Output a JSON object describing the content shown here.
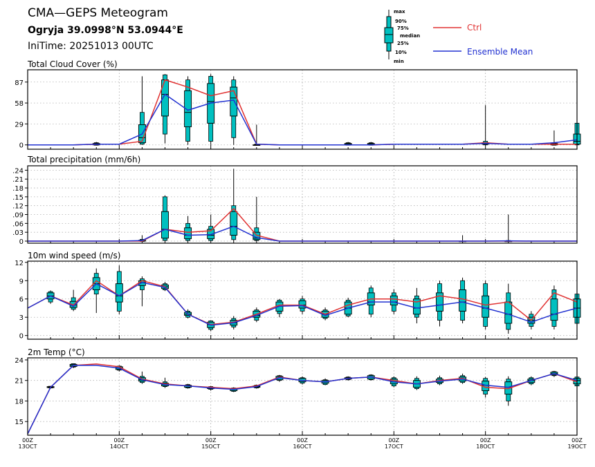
{
  "header": {
    "title": "CMA—GEPS Meteogram",
    "location": "Ogryja 39.0998°N 53.0944°E",
    "init_time": "IniTime: 20251013 00UTC"
  },
  "legend": {
    "box_labels": [
      "max",
      "90%",
      "75%",
      "median",
      "25%",
      "10%",
      "min"
    ],
    "ctrl_label": "Ctrl",
    "mean_label": "Ensemble Mean",
    "ctrl_color": "#e03030",
    "mean_color": "#2030d0",
    "box_color": "#00c0c0"
  },
  "chart_data": [
    {
      "type": "box",
      "title": "Total Cloud Cover (%)",
      "ylim": [
        -6,
        104
      ],
      "yticks": [
        0,
        29,
        58,
        87
      ],
      "x": [
        0,
        1,
        2,
        3,
        4,
        5,
        6,
        7,
        8,
        9,
        10,
        11,
        12,
        13,
        14,
        15,
        16,
        17,
        18,
        19,
        20,
        21,
        22,
        23,
        24
      ],
      "ctrl": [
        0,
        0,
        0,
        1,
        1,
        5,
        90,
        80,
        68,
        75,
        1,
        0,
        0,
        0,
        0,
        0,
        1,
        1,
        1,
        1,
        3,
        1,
        1,
        1,
        1
      ],
      "mean": [
        0,
        0,
        0,
        1,
        1,
        15,
        70,
        48,
        58,
        62,
        1,
        0,
        0,
        0,
        0,
        0,
        1,
        1,
        1,
        1,
        2,
        1,
        1,
        3,
        7
      ],
      "boxes": [
        null,
        null,
        null,
        {
          "min": 0,
          "p10": 0,
          "p25": 0,
          "med": 1,
          "p75": 2,
          "p90": 3,
          "max": 4
        },
        null,
        {
          "min": 0,
          "p10": 1,
          "p25": 3,
          "med": 10,
          "p75": 28,
          "p90": 45,
          "max": 95
        },
        {
          "min": 2,
          "p10": 15,
          "p25": 40,
          "med": 70,
          "p75": 90,
          "p90": 97,
          "max": 98
        },
        {
          "min": 0,
          "p10": 5,
          "p25": 25,
          "med": 45,
          "p75": 75,
          "p90": 90,
          "max": 95
        },
        {
          "min": 0,
          "p10": 5,
          "p25": 30,
          "med": 60,
          "p75": 85,
          "p90": 95,
          "max": 98
        },
        {
          "min": 0,
          "p10": 10,
          "p25": 40,
          "med": 65,
          "p75": 80,
          "p90": 90,
          "max": 95
        },
        {
          "min": 0,
          "p10": 0,
          "p25": 0,
          "med": 0,
          "p75": 0,
          "p90": 1,
          "max": 28
        },
        null,
        null,
        null,
        {
          "min": 0,
          "p10": 0,
          "p25": 0,
          "med": 1,
          "p75": 2,
          "p90": 3,
          "max": 4
        },
        {
          "min": 0,
          "p10": 0,
          "p25": 0,
          "med": 1,
          "p75": 2,
          "p90": 3,
          "max": 4
        },
        null,
        null,
        null,
        null,
        {
          "min": 0,
          "p10": 0,
          "p25": 1,
          "med": 2,
          "p75": 3,
          "p90": 5,
          "max": 55
        },
        null,
        null,
        {
          "min": 0,
          "p10": 0,
          "p25": 0,
          "med": 1,
          "p75": 2,
          "p90": 3,
          "max": 20
        },
        {
          "min": 0,
          "p10": 0,
          "p25": 1,
          "med": 5,
          "p75": 15,
          "p90": 30,
          "max": 35
        }
      ]
    },
    {
      "type": "box",
      "title": "Total precipitation (mm/6h)",
      "ylim": [
        -0.007,
        0.255
      ],
      "yticks": [
        0,
        0.03,
        0.06,
        0.09,
        0.12,
        0.15,
        0.18,
        0.21,
        0.24
      ],
      "x": [
        0,
        1,
        2,
        3,
        4,
        5,
        6,
        7,
        8,
        9,
        10,
        11,
        12,
        13,
        14,
        15,
        16,
        17,
        18,
        19,
        20,
        21,
        22,
        23,
        24
      ],
      "ctrl": [
        0,
        0,
        0,
        0,
        0,
        0,
        0.04,
        0.03,
        0.035,
        0.11,
        0.02,
        0,
        0,
        0,
        0,
        0,
        0,
        0,
        0,
        0,
        0,
        0,
        0,
        0,
        0
      ],
      "mean": [
        0,
        0,
        0,
        0,
        0,
        0.002,
        0.04,
        0.02,
        0.022,
        0.05,
        0.012,
        0,
        0,
        0,
        0,
        0,
        0,
        0,
        0,
        0,
        0,
        0.001,
        0,
        0,
        0
      ],
      "boxes": [
        null,
        null,
        null,
        null,
        null,
        {
          "min": 0,
          "p10": 0,
          "p25": 0,
          "med": 0,
          "p75": 0.003,
          "p90": 0.006,
          "max": 0.02
        },
        {
          "min": 0,
          "p10": 0.002,
          "p25": 0.01,
          "med": 0.04,
          "p75": 0.1,
          "p90": 0.15,
          "max": 0.155
        },
        {
          "min": 0,
          "p10": 0.002,
          "p25": 0.008,
          "med": 0.02,
          "p75": 0.045,
          "p90": 0.06,
          "max": 0.085
        },
        {
          "min": 0,
          "p10": 0.002,
          "p25": 0.008,
          "med": 0.02,
          "p75": 0.04,
          "p90": 0.05,
          "max": 0.09
        },
        {
          "min": 0,
          "p10": 0.005,
          "p25": 0.02,
          "med": 0.05,
          "p75": 0.1,
          "p90": 0.12,
          "max": 0.245
        },
        {
          "min": 0,
          "p10": 0.002,
          "p25": 0.005,
          "med": 0.01,
          "p75": 0.03,
          "p90": 0.045,
          "max": 0.15
        },
        null,
        null,
        null,
        null,
        null,
        null,
        null,
        null,
        {
          "min": 0,
          "p10": 0,
          "p25": 0,
          "med": 0,
          "p75": 0,
          "p90": 0,
          "max": 0.02
        },
        null,
        {
          "min": 0,
          "p10": 0,
          "p25": 0,
          "med": 0,
          "p75": 0,
          "p90": 0.002,
          "max": 0.09
        },
        null,
        null,
        null
      ]
    },
    {
      "type": "box",
      "title": "10m wind speed (m/s)",
      "ylim": [
        -0.6,
        12.2
      ],
      "yticks": [
        0,
        3,
        6,
        9,
        12
      ],
      "x": [
        0,
        1,
        2,
        3,
        4,
        5,
        6,
        7,
        8,
        9,
        10,
        11,
        12,
        13,
        14,
        15,
        16,
        17,
        18,
        19,
        20,
        21,
        22,
        23,
        24
      ],
      "ctrl": [
        4.5,
        6.5,
        5.0,
        9.0,
        6.5,
        9.0,
        8.0,
        3.5,
        1.8,
        2.2,
        3.5,
        5.0,
        5.0,
        3.5,
        5.0,
        6.0,
        6.0,
        5.5,
        6.5,
        6.0,
        5.0,
        5.5,
        2.5,
        7.0,
        5.5
      ],
      "mean": [
        4.5,
        6.5,
        4.8,
        8.5,
        6.5,
        8.7,
        7.9,
        3.5,
        1.7,
        2.1,
        3.3,
        4.8,
        4.9,
        3.3,
        4.5,
        5.5,
        5.5,
        4.5,
        5.0,
        5.5,
        4.5,
        3.5,
        2.2,
        3.5,
        4.5
      ],
      "boxes": [
        null,
        {
          "min": 5.2,
          "p10": 5.5,
          "p25": 6.0,
          "med": 6.5,
          "p75": 7.0,
          "p90": 7.2,
          "max": 7.4
        },
        {
          "min": 4.0,
          "p10": 4.3,
          "p25": 4.6,
          "med": 5.0,
          "p75": 5.6,
          "p90": 6.2,
          "max": 7.5
        },
        {
          "min": 3.7,
          "p10": 6.8,
          "p25": 7.5,
          "med": 8.5,
          "p75": 9.5,
          "p90": 10.2,
          "max": 11.0
        },
        {
          "min": 3.5,
          "p10": 4.0,
          "p25": 5.5,
          "med": 6.5,
          "p75": 8.5,
          "p90": 10.5,
          "max": 11.5
        },
        {
          "min": 4.8,
          "p10": 7.5,
          "p25": 8.2,
          "med": 8.7,
          "p75": 9.0,
          "p90": 9.3,
          "max": 9.7
        },
        {
          "min": 7.3,
          "p10": 7.5,
          "p25": 7.7,
          "med": 8.0,
          "p75": 8.3,
          "p90": 8.5,
          "max": 8.8
        },
        {
          "min": 2.8,
          "p10": 3.0,
          "p25": 3.3,
          "med": 3.5,
          "p75": 3.8,
          "p90": 4.0,
          "max": 4.3
        },
        {
          "min": 0.7,
          "p10": 1.0,
          "p25": 1.3,
          "med": 1.8,
          "p75": 2.2,
          "p90": 2.4,
          "max": 2.5
        },
        {
          "min": 1.0,
          "p10": 1.4,
          "p25": 1.7,
          "med": 2.1,
          "p75": 2.5,
          "p90": 2.8,
          "max": 3.2
        },
        {
          "min": 2.2,
          "p10": 2.5,
          "p25": 3.0,
          "med": 3.3,
          "p75": 4.0,
          "p90": 4.2,
          "max": 4.6
        },
        {
          "min": 3.0,
          "p10": 3.6,
          "p25": 4.0,
          "med": 4.8,
          "p75": 5.5,
          "p90": 5.8,
          "max": 6.0
        },
        {
          "min": 3.5,
          "p10": 4.0,
          "p25": 4.5,
          "med": 5.0,
          "p75": 5.7,
          "p90": 6.0,
          "max": 6.5
        },
        {
          "min": 2.5,
          "p10": 2.8,
          "p25": 3.0,
          "med": 3.5,
          "p75": 4.0,
          "p90": 4.2,
          "max": 4.6
        },
        {
          "min": 3.0,
          "p10": 3.2,
          "p25": 3.5,
          "med": 4.5,
          "p75": 5.5,
          "p90": 5.8,
          "max": 6.2
        },
        {
          "min": 3.0,
          "p10": 3.5,
          "p25": 5.0,
          "med": 5.5,
          "p75": 7.0,
          "p90": 7.8,
          "max": 8.2
        },
        {
          "min": 3.5,
          "p10": 4.0,
          "p25": 5.0,
          "med": 5.5,
          "p75": 6.5,
          "p90": 7.0,
          "max": 7.6
        },
        {
          "min": 2.0,
          "p10": 3.0,
          "p25": 3.5,
          "med": 4.5,
          "p75": 6.0,
          "p90": 6.5,
          "max": 7.8
        },
        {
          "min": 1.5,
          "p10": 2.5,
          "p25": 4.0,
          "med": 5.0,
          "p75": 7.0,
          "p90": 8.5,
          "max": 9.0
        },
        {
          "min": 2.0,
          "p10": 2.5,
          "p25": 4.0,
          "med": 5.5,
          "p75": 7.5,
          "p90": 9.0,
          "max": 9.5
        },
        {
          "min": 1.0,
          "p10": 1.5,
          "p25": 3.0,
          "med": 4.5,
          "p75": 6.5,
          "p90": 8.5,
          "max": 9.0
        },
        {
          "min": 0.3,
          "p10": 1.0,
          "p25": 2.0,
          "med": 3.5,
          "p75": 5.5,
          "p90": 7.0,
          "max": 8.5
        },
        {
          "min": 1.0,
          "p10": 1.5,
          "p25": 2.0,
          "med": 2.5,
          "p75": 3.0,
          "p90": 3.5,
          "max": 4.0
        },
        {
          "min": 1.0,
          "p10": 1.5,
          "p25": 2.5,
          "med": 3.5,
          "p75": 6.0,
          "p90": 7.5,
          "max": 8.2
        },
        {
          "min": 1.5,
          "p10": 2.0,
          "p25": 3.0,
          "med": 4.5,
          "p75": 6.0,
          "p90": 6.8,
          "max": 7.0
        }
      ]
    },
    {
      "type": "box",
      "title": "2m Temp (°C)",
      "ylim": [
        13,
        24.3
      ],
      "yticks": [
        15,
        18,
        21,
        24
      ],
      "x": [
        0,
        1,
        2,
        3,
        4,
        5,
        6,
        7,
        8,
        9,
        10,
        11,
        12,
        13,
        14,
        15,
        16,
        17,
        18,
        19,
        20,
        21,
        22,
        23,
        24
      ],
      "xtick_labels": [
        [
          "00Z",
          "13OCT"
        ],
        [
          "00Z",
          "14OCT"
        ],
        [
          "00Z",
          "15OCT"
        ],
        [
          "00Z",
          "16OCT"
        ],
        [
          "00Z",
          "17OCT"
        ],
        [
          "00Z",
          "18OCT"
        ],
        [
          "00Z",
          "19OCT"
        ]
      ],
      "ctrl": [
        13.2,
        20.0,
        23.2,
        23.4,
        23.0,
        21.2,
        20.5,
        20.2,
        20.0,
        19.8,
        20.2,
        21.5,
        21.0,
        20.8,
        21.3,
        21.5,
        21.0,
        20.5,
        21.0,
        21.3,
        20.0,
        19.8,
        21.0,
        22.0,
        20.8
      ],
      "mean": [
        13.2,
        20.0,
        23.2,
        23.2,
        22.8,
        21.1,
        20.4,
        20.2,
        19.9,
        19.7,
        20.1,
        21.4,
        21.0,
        20.8,
        21.3,
        21.5,
        20.8,
        20.5,
        20.9,
        21.2,
        20.3,
        20.0,
        21.0,
        22.0,
        21.0
      ],
      "boxes": [
        null,
        {
          "min": 19.8,
          "p10": 19.9,
          "p25": 19.95,
          "med": 20.0,
          "p75": 20.1,
          "p90": 20.15,
          "max": 20.2
        },
        {
          "min": 22.8,
          "p10": 22.95,
          "p25": 23.05,
          "med": 23.2,
          "p75": 23.35,
          "p90": 23.45,
          "max": 23.5
        },
        null,
        {
          "min": 22.3,
          "p10": 22.5,
          "p25": 22.6,
          "med": 22.8,
          "p75": 23.0,
          "p90": 23.1,
          "max": 23.2
        },
        {
          "min": 20.5,
          "p10": 20.7,
          "p25": 20.9,
          "med": 21.1,
          "p75": 21.4,
          "p90": 21.6,
          "max": 22.3
        },
        {
          "min": 19.9,
          "p10": 20.1,
          "p25": 20.2,
          "med": 20.4,
          "p75": 20.6,
          "p90": 20.8,
          "max": 21.4
        },
        {
          "min": 19.8,
          "p10": 19.9,
          "p25": 20.0,
          "med": 20.2,
          "p75": 20.3,
          "p90": 20.4,
          "max": 20.5
        },
        {
          "min": 19.5,
          "p10": 19.7,
          "p25": 19.8,
          "med": 19.9,
          "p75": 20.0,
          "p90": 20.1,
          "max": 20.2
        },
        {
          "min": 19.3,
          "p10": 19.4,
          "p25": 19.5,
          "med": 19.7,
          "p75": 19.8,
          "p90": 19.9,
          "max": 20.0
        },
        {
          "min": 19.8,
          "p10": 19.9,
          "p25": 20.0,
          "med": 20.1,
          "p75": 20.2,
          "p90": 20.3,
          "max": 20.4
        },
        {
          "min": 20.8,
          "p10": 21.0,
          "p25": 21.1,
          "med": 21.4,
          "p75": 21.6,
          "p90": 21.7,
          "max": 21.8
        },
        {
          "min": 20.4,
          "p10": 20.6,
          "p25": 20.8,
          "med": 21.0,
          "p75": 21.3,
          "p90": 21.4,
          "max": 21.6
        },
        {
          "min": 20.3,
          "p10": 20.4,
          "p25": 20.6,
          "med": 20.8,
          "p75": 21.0,
          "p90": 21.1,
          "max": 21.3
        },
        {
          "min": 21.0,
          "p10": 21.1,
          "p25": 21.2,
          "med": 21.3,
          "p75": 21.4,
          "p90": 21.5,
          "max": 21.6
        },
        {
          "min": 21.0,
          "p10": 21.1,
          "p25": 21.2,
          "med": 21.5,
          "p75": 21.7,
          "p90": 21.8,
          "max": 21.9
        },
        {
          "min": 20.0,
          "p10": 20.2,
          "p25": 20.5,
          "med": 20.8,
          "p75": 21.2,
          "p90": 21.4,
          "max": 21.6
        },
        {
          "min": 19.6,
          "p10": 19.8,
          "p25": 20.0,
          "med": 20.5,
          "p75": 21.0,
          "p90": 21.3,
          "max": 21.6
        },
        {
          "min": 20.3,
          "p10": 20.5,
          "p25": 20.7,
          "med": 20.9,
          "p75": 21.2,
          "p90": 21.4,
          "max": 21.7
        },
        {
          "min": 20.5,
          "p10": 20.7,
          "p25": 20.9,
          "med": 21.2,
          "p75": 21.5,
          "p90": 21.7,
          "max": 22.0
        },
        {
          "min": 18.5,
          "p10": 19.0,
          "p25": 19.5,
          "med": 20.3,
          "p75": 20.9,
          "p90": 21.3,
          "max": 21.5
        },
        {
          "min": 17.3,
          "p10": 18.0,
          "p25": 19.0,
          "med": 20.0,
          "p75": 20.8,
          "p90": 21.2,
          "max": 21.6
        },
        {
          "min": 20.3,
          "p10": 20.5,
          "p25": 20.7,
          "med": 21.0,
          "p75": 21.2,
          "p90": 21.4,
          "max": 21.6
        },
        {
          "min": 21.5,
          "p10": 21.7,
          "p25": 21.8,
          "med": 22.0,
          "p75": 22.2,
          "p90": 22.3,
          "max": 22.4
        },
        {
          "min": 19.8,
          "p10": 20.2,
          "p25": 20.5,
          "med": 21.0,
          "p75": 21.3,
          "p90": 21.5,
          "max": 21.6
        }
      ]
    }
  ]
}
